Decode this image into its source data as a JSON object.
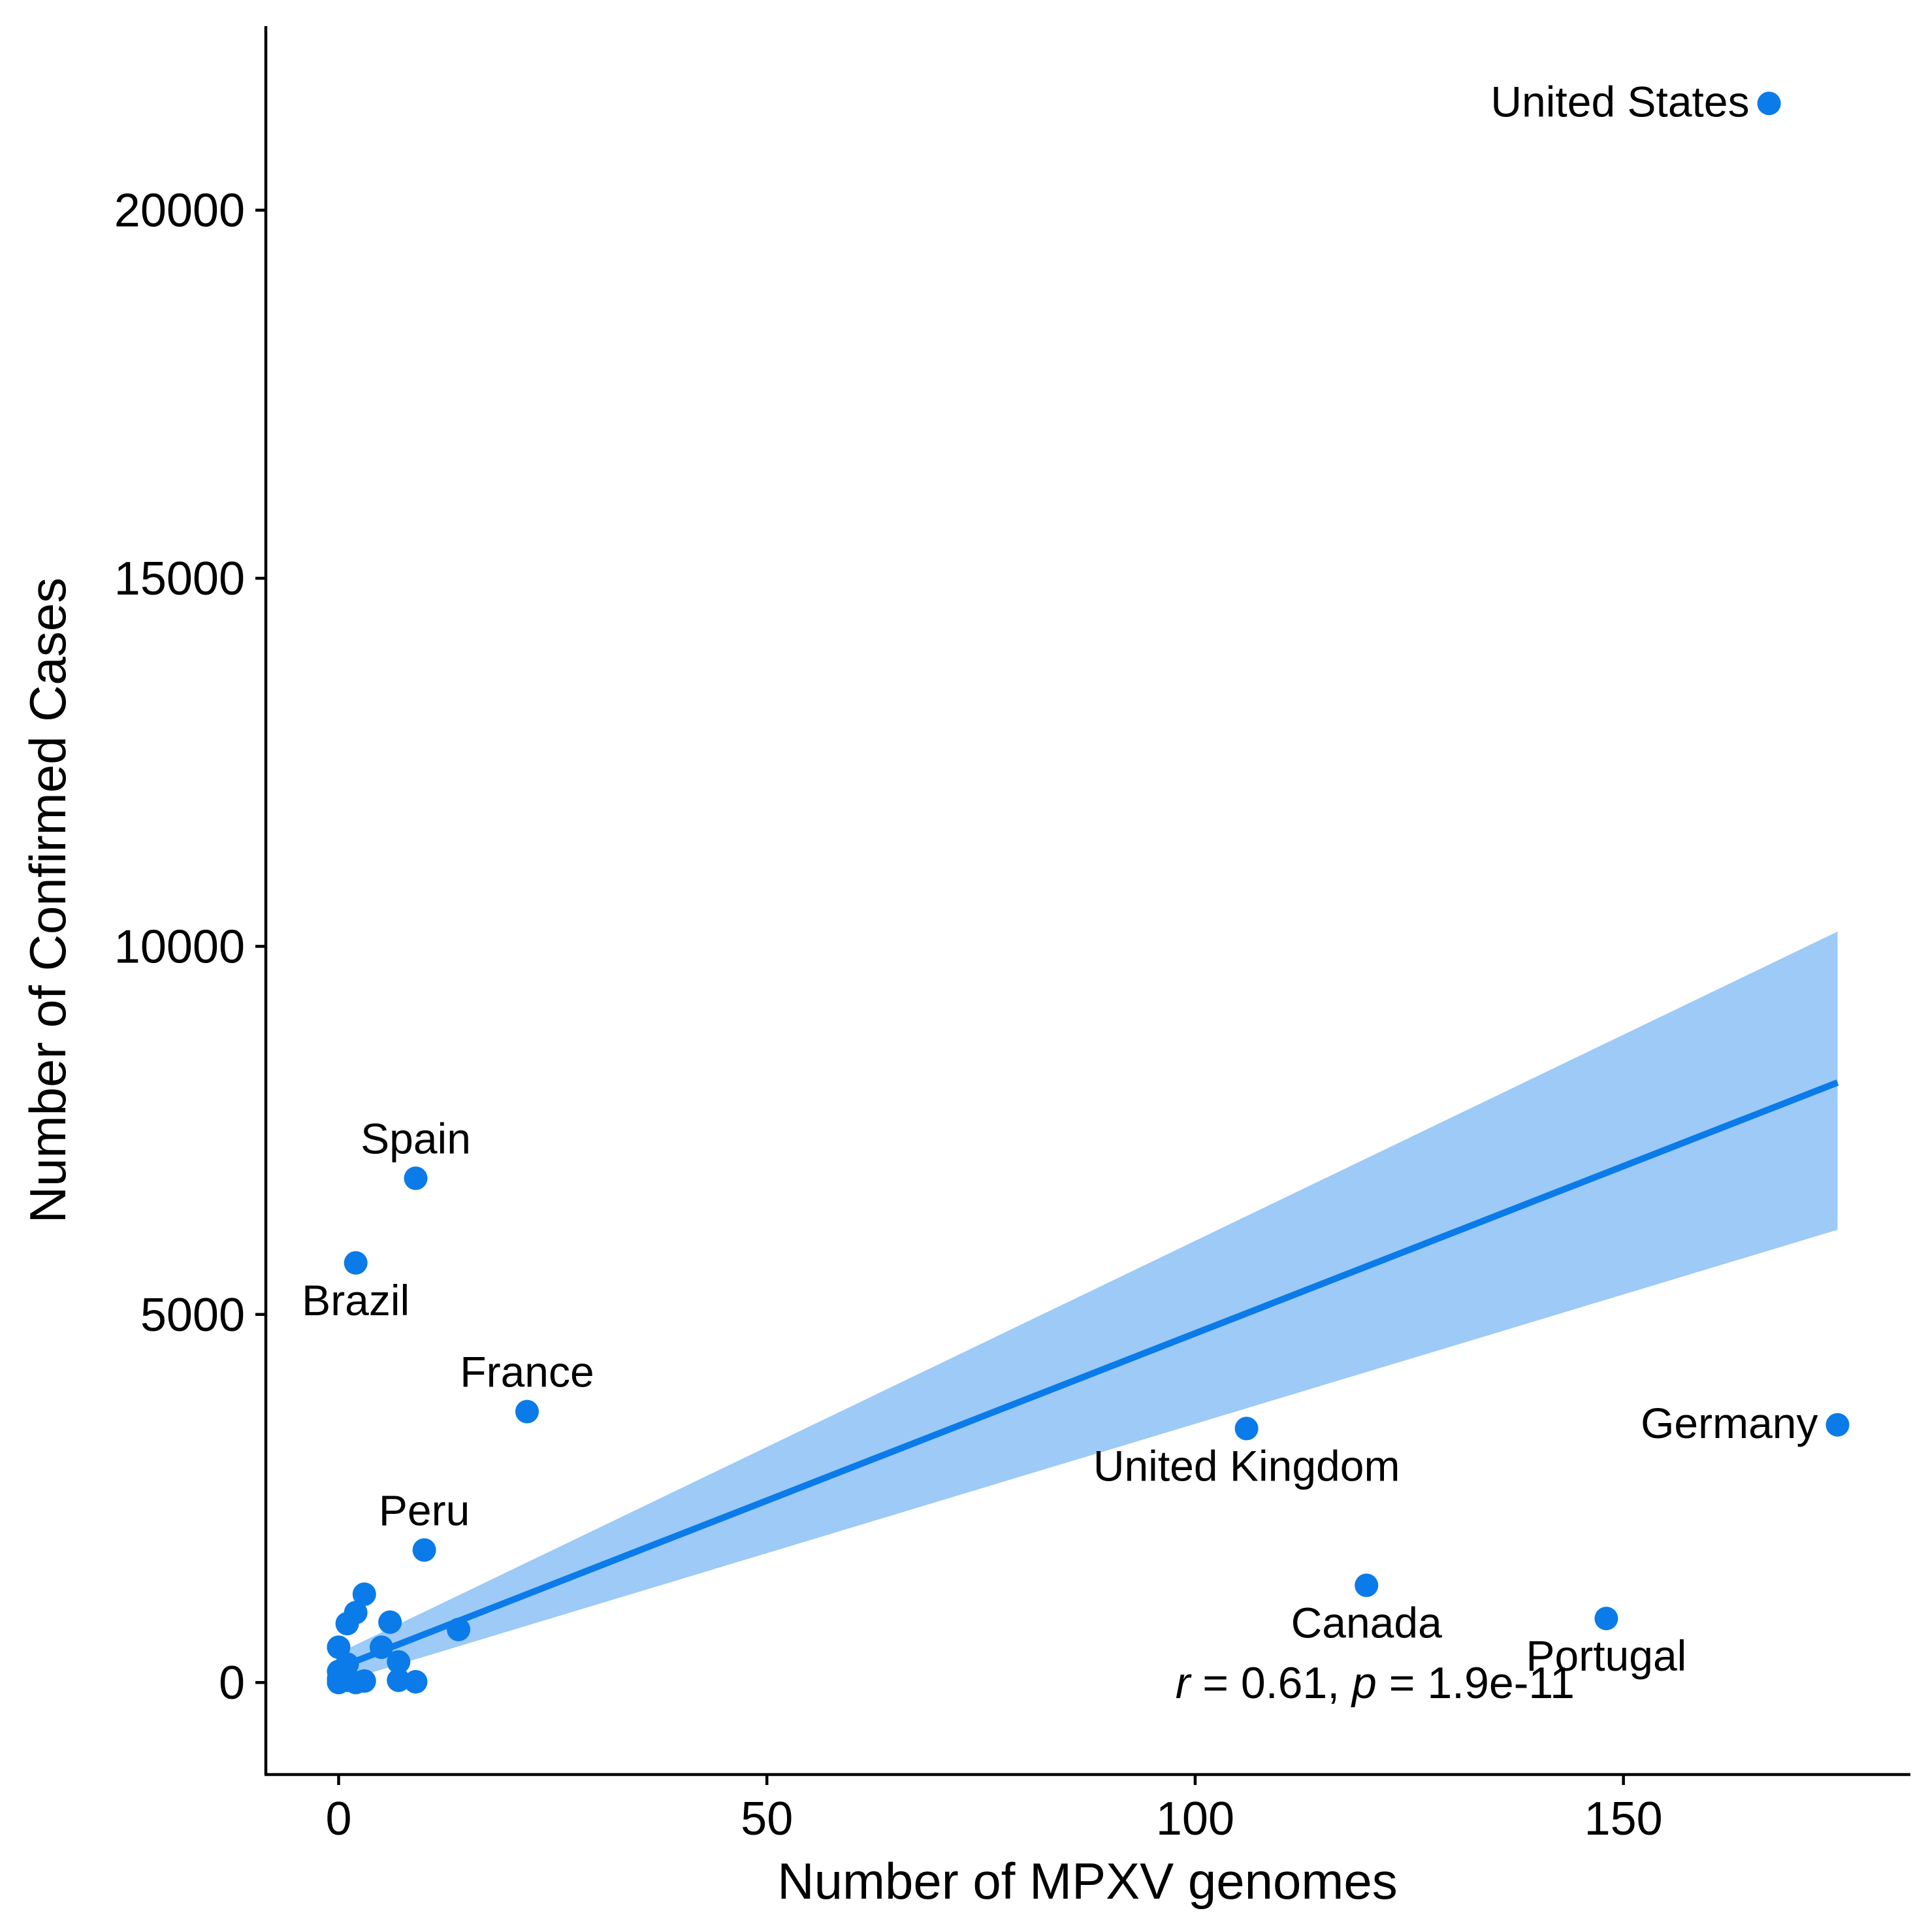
{
  "chart_data": {
    "type": "scatter",
    "title": "",
    "xlabel": "Number of MPXV genomes",
    "ylabel": "Number of Confirmed Cases",
    "xlim": [
      -8.5,
      183.5
    ],
    "ylim": [
      -1250,
      22500
    ],
    "x_ticks": [
      0,
      50,
      100,
      150
    ],
    "x_tick_labels": [
      "0",
      "50",
      "100",
      "150"
    ],
    "y_ticks": [
      0,
      5000,
      10000,
      15000,
      20000
    ],
    "y_tick_labels": [
      "0",
      "5000",
      "10000",
      "15000",
      "20000"
    ],
    "grid": false,
    "legend": "none",
    "point_color": "#0A7BE8",
    "band_color": "#9DCAF6",
    "annotation": {
      "r_symbol": "r",
      "r_text": " = 0.61, ",
      "p_symbol": "p",
      "p_text": " = 1.9e-11",
      "x": 121,
      "y": 0
    },
    "regression": {
      "x": [
        0,
        175
      ],
      "y": [
        200,
        8150
      ],
      "ci_lower": [
        0,
        6150
      ],
      "ci_upper": [
        400,
        10200
      ]
    },
    "points": [
      {
        "x": 167,
        "y": 21450,
        "label": "United States",
        "label_pos": "left"
      },
      {
        "x": 9,
        "y": 6850,
        "label": "Spain",
        "label_pos": "above"
      },
      {
        "x": 2,
        "y": 5700,
        "label": "Brazil",
        "label_pos": "below"
      },
      {
        "x": 22,
        "y": 3680,
        "label": "France",
        "label_pos": "above"
      },
      {
        "x": 106,
        "y": 3450,
        "label": "United Kingdom",
        "label_pos": "below"
      },
      {
        "x": 175,
        "y": 3500,
        "label": "Germany",
        "label_pos": "left"
      },
      {
        "x": 10,
        "y": 1800,
        "label": "Peru",
        "label_pos": "above"
      },
      {
        "x": 120,
        "y": 1320,
        "label": "Canada",
        "label_pos": "below"
      },
      {
        "x": 148,
        "y": 870,
        "label": "Portugal",
        "label_pos": "below"
      },
      {
        "x": 3,
        "y": 1200,
        "label": ""
      },
      {
        "x": 2,
        "y": 950,
        "label": ""
      },
      {
        "x": 1,
        "y": 800,
        "label": ""
      },
      {
        "x": 6,
        "y": 820,
        "label": ""
      },
      {
        "x": 14,
        "y": 720,
        "label": ""
      },
      {
        "x": 0,
        "y": 480,
        "label": ""
      },
      {
        "x": 5,
        "y": 480,
        "label": ""
      },
      {
        "x": 7,
        "y": 280,
        "label": ""
      },
      {
        "x": 1,
        "y": 250,
        "label": ""
      },
      {
        "x": 0,
        "y": 150,
        "label": ""
      },
      {
        "x": 0,
        "y": 50,
        "label": ""
      },
      {
        "x": 0,
        "y": 0,
        "label": ""
      },
      {
        "x": 1,
        "y": 30,
        "label": ""
      },
      {
        "x": 2,
        "y": 0,
        "label": ""
      },
      {
        "x": 3,
        "y": 20,
        "label": ""
      },
      {
        "x": 7,
        "y": 30,
        "label": ""
      },
      {
        "x": 9,
        "y": 10,
        "label": ""
      }
    ]
  }
}
